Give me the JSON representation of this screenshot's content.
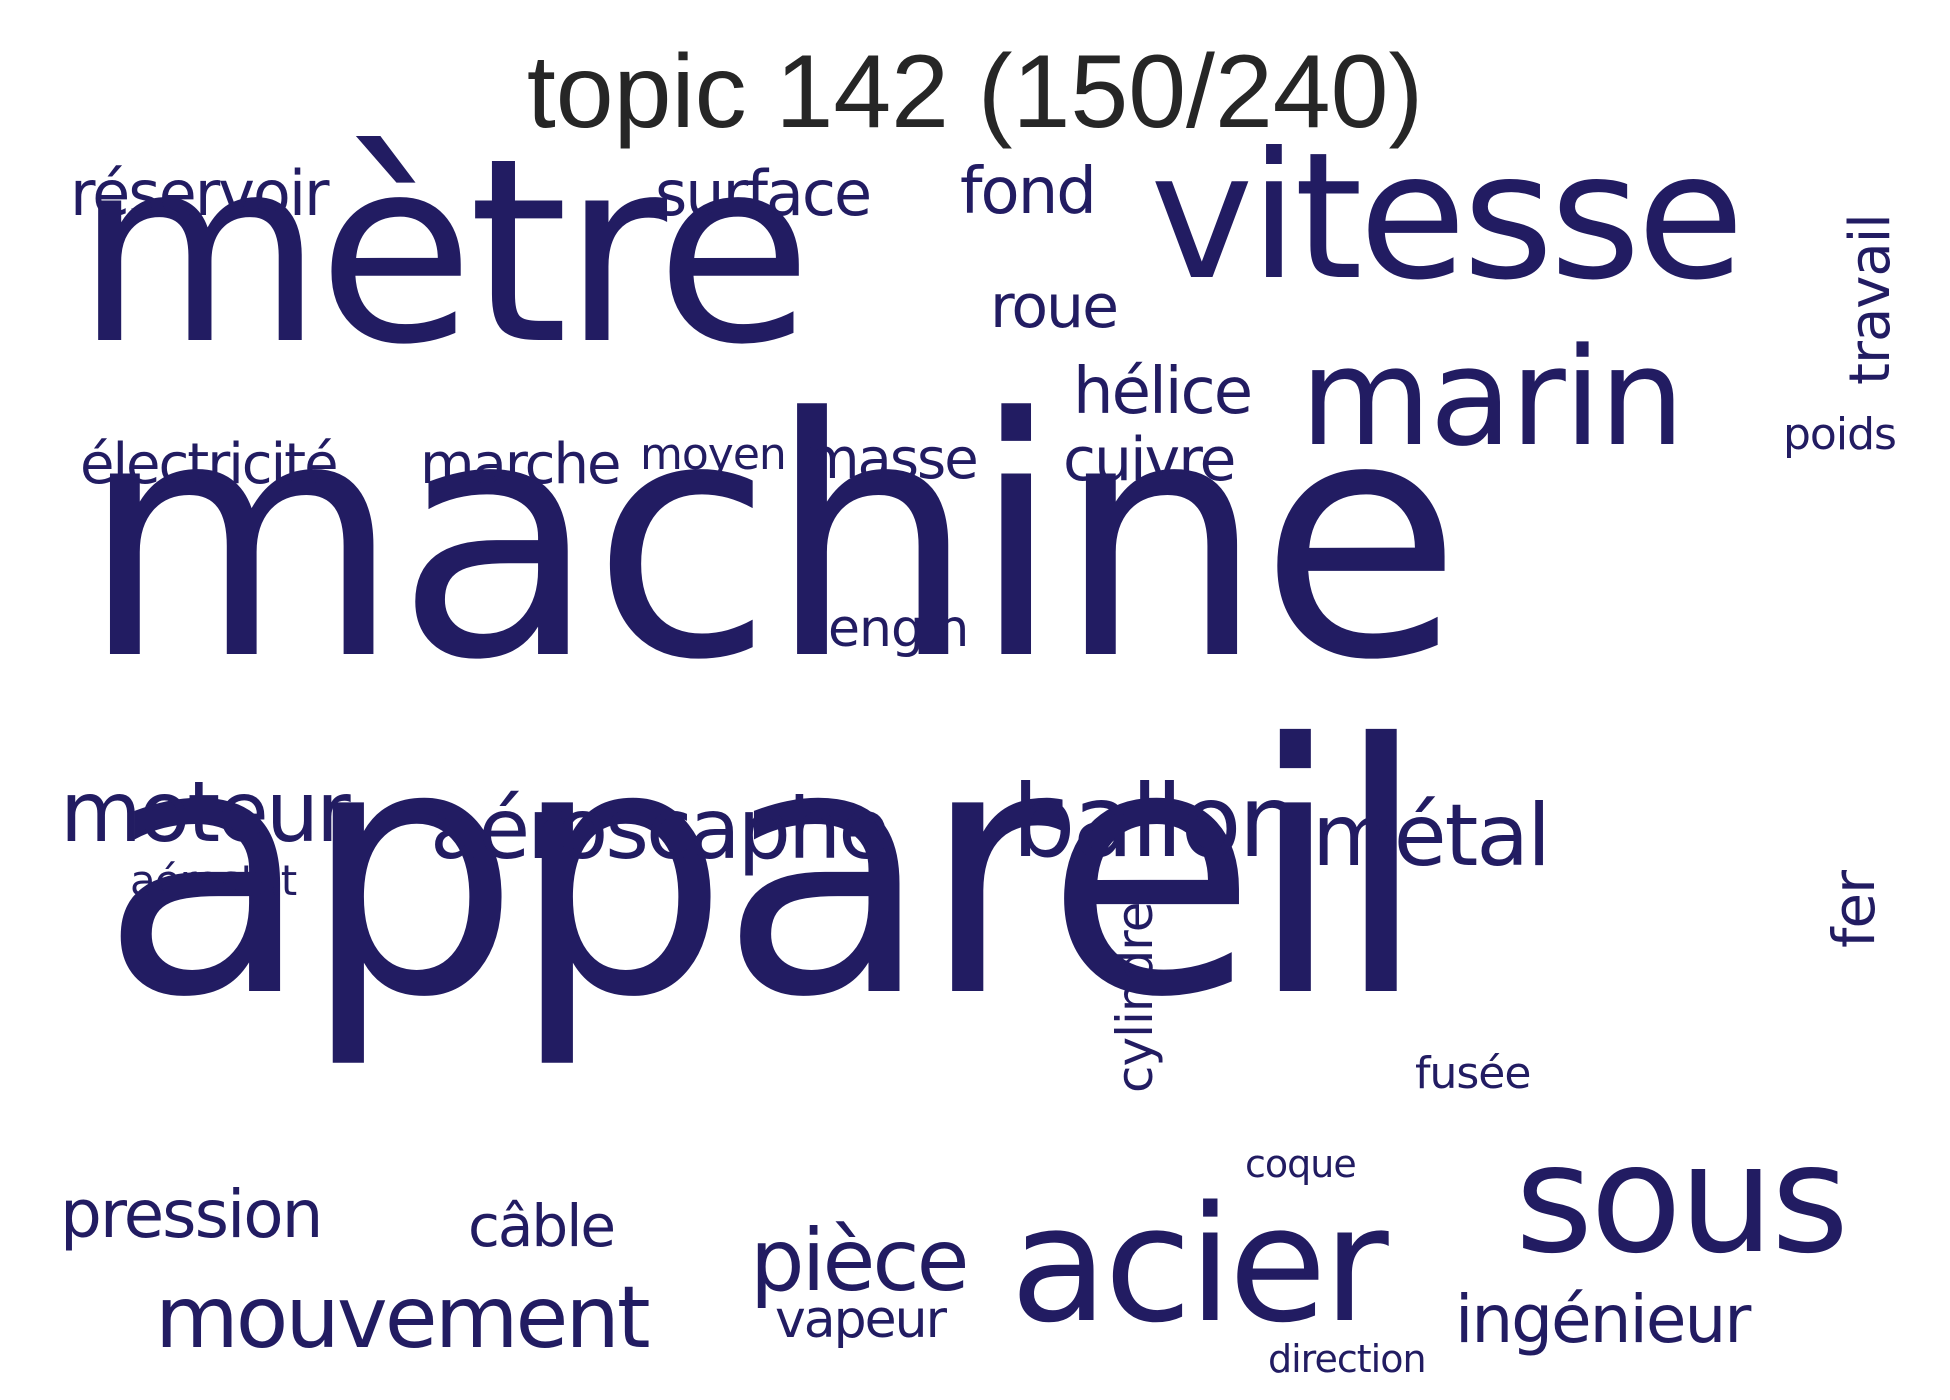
{
  "title": "topic 142 (150/240)",
  "word_color": "#221c62",
  "words": [
    {
      "text": "machine"
    },
    {
      "text": "appareil"
    },
    {
      "text": "mètre"
    },
    {
      "text": "vitesse"
    },
    {
      "text": "marin"
    },
    {
      "text": "sous"
    },
    {
      "text": "acier"
    },
    {
      "text": "ballon"
    },
    {
      "text": "aéroscaphe"
    },
    {
      "text": "moteur"
    },
    {
      "text": "métal"
    },
    {
      "text": "mouvement"
    },
    {
      "text": "pièce"
    },
    {
      "text": "ingénieur"
    },
    {
      "text": "pression"
    },
    {
      "text": "réservoir"
    },
    {
      "text": "surface"
    },
    {
      "text": "fond"
    },
    {
      "text": "roue"
    },
    {
      "text": "hélice"
    },
    {
      "text": "cuivre"
    },
    {
      "text": "électricité"
    },
    {
      "text": "marche"
    },
    {
      "text": "masse"
    },
    {
      "text": "moyen"
    },
    {
      "text": "engin"
    },
    {
      "text": "travail"
    },
    {
      "text": "poids"
    },
    {
      "text": "cylindre"
    },
    {
      "text": "fer"
    },
    {
      "text": "câble"
    },
    {
      "text": "vapeur"
    },
    {
      "text": "fusée"
    },
    {
      "text": "coque"
    },
    {
      "text": "direction"
    },
    {
      "text": "aérostat"
    }
  ]
}
